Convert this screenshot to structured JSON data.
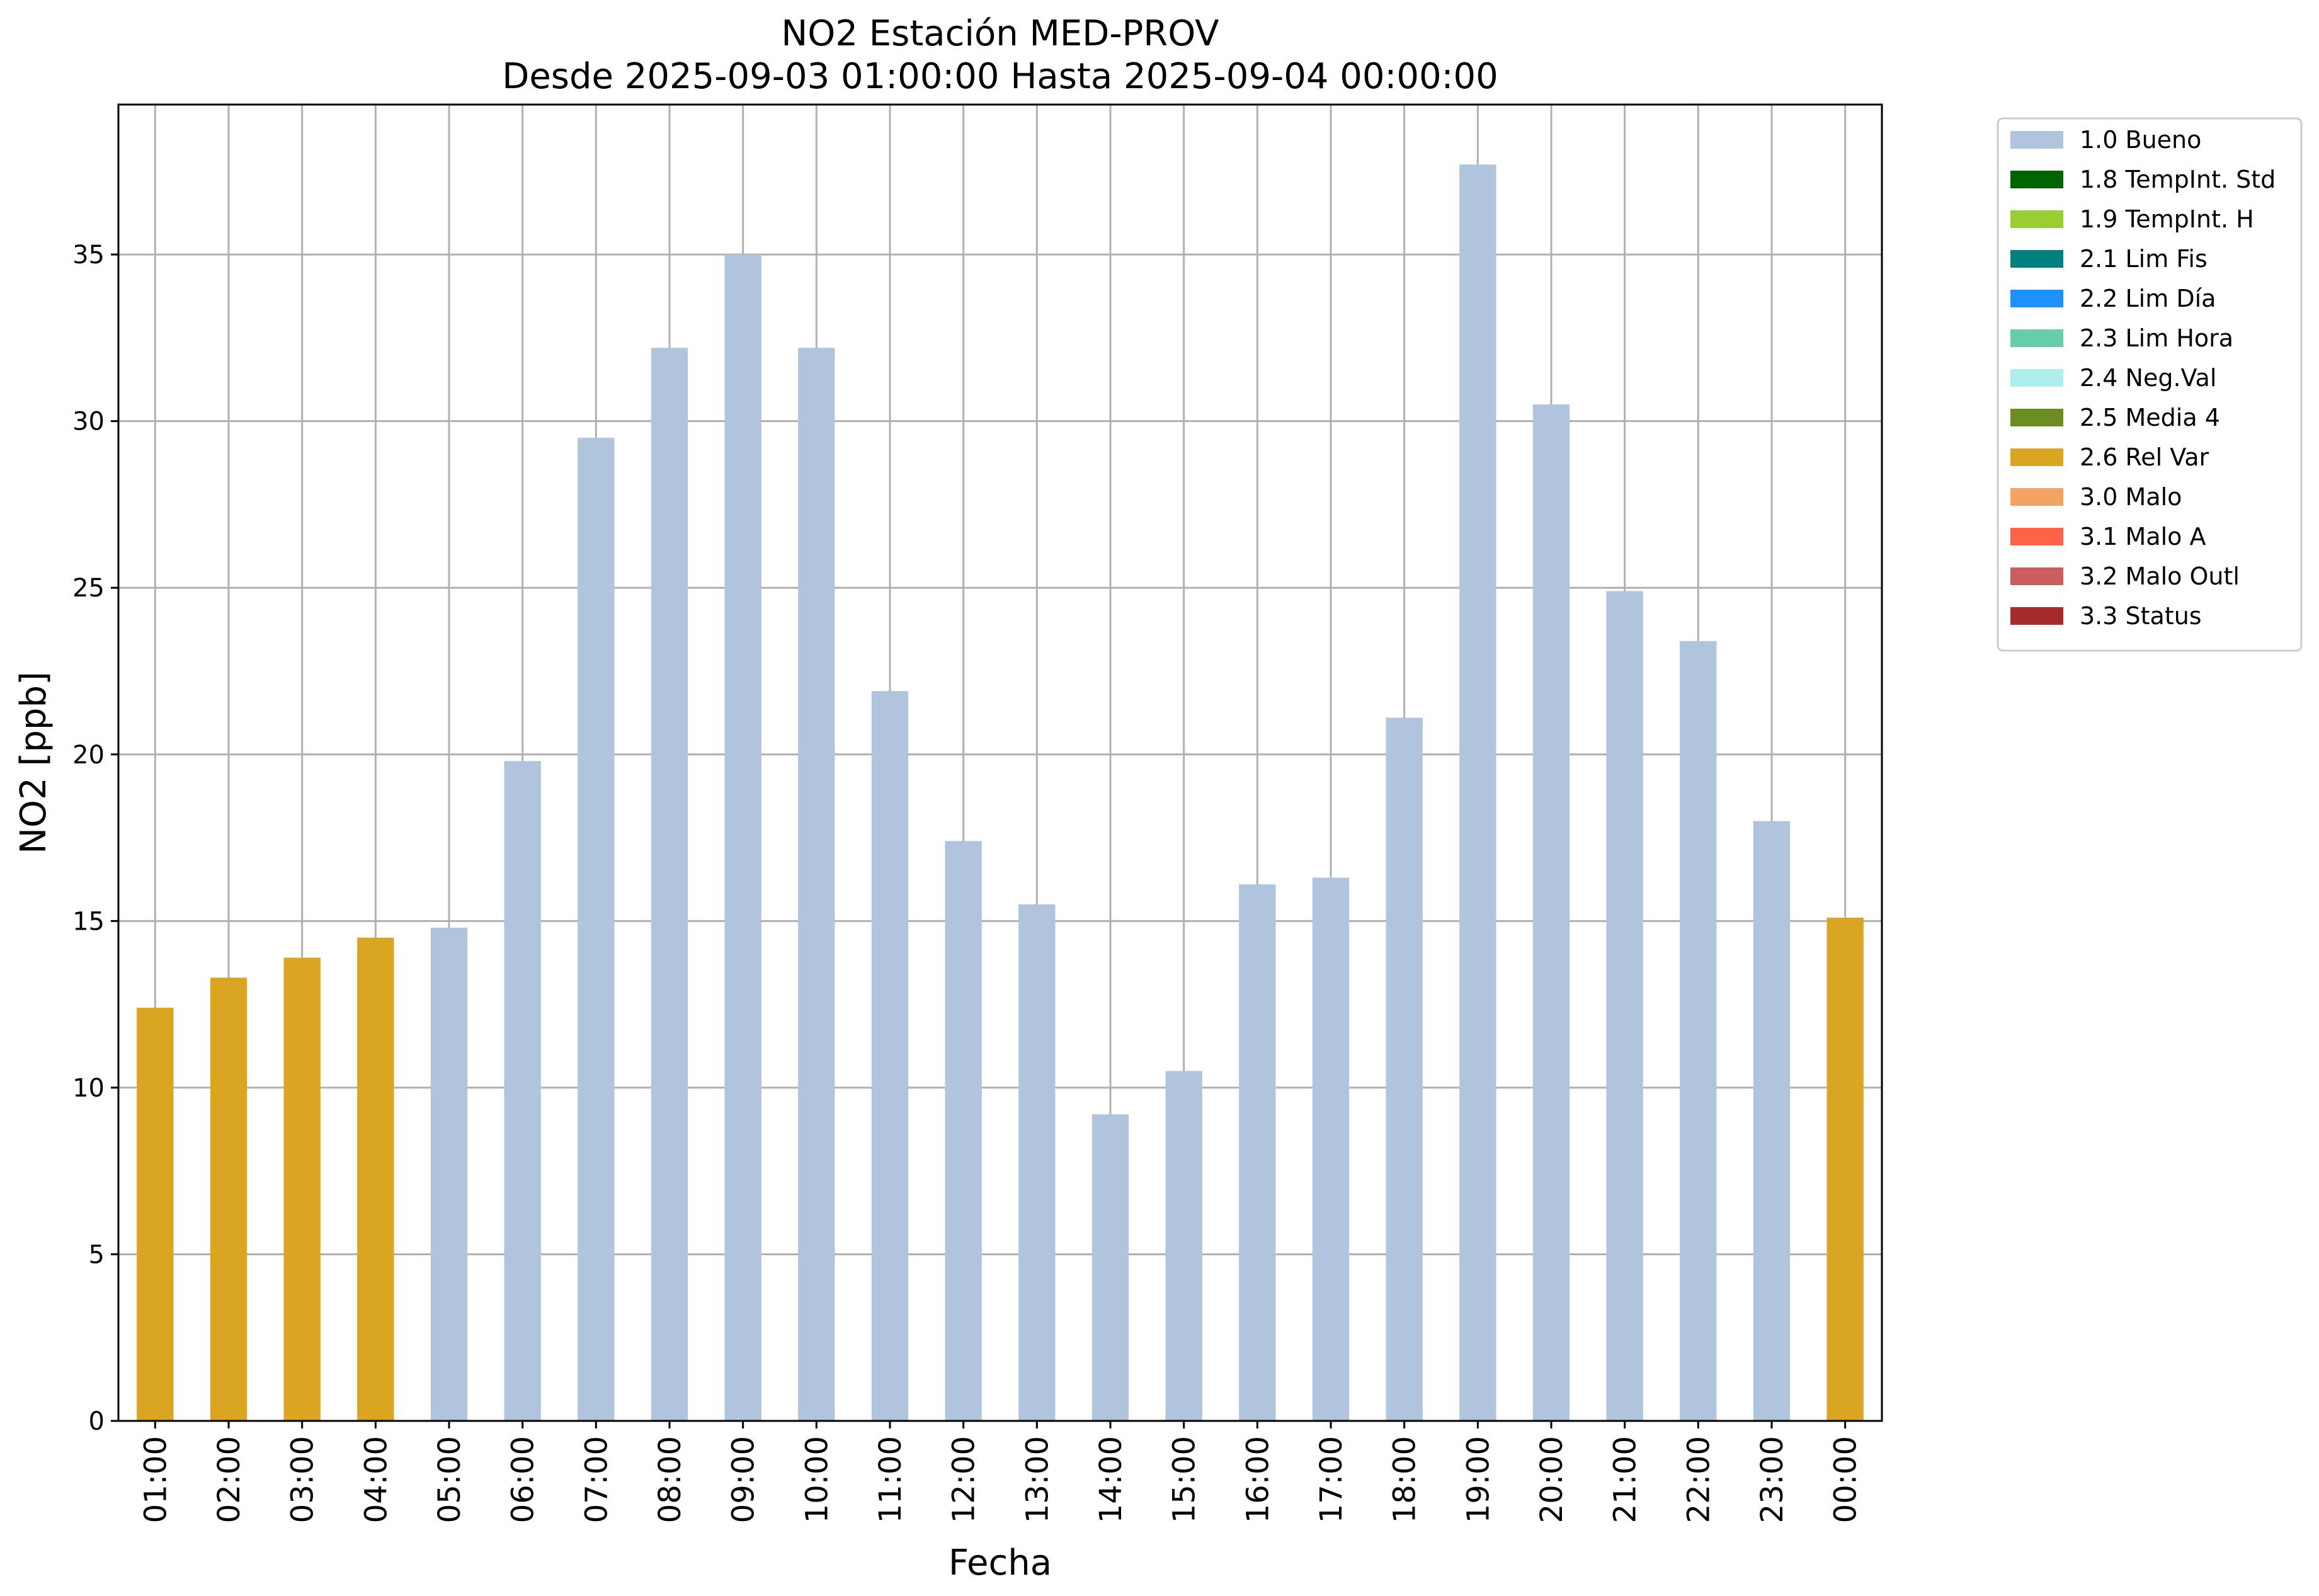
{
  "chart_data": {
    "type": "bar",
    "title": "NO2 Estación MED-PROV",
    "subtitle": "Desde 2025-09-03 01:00:00 Hasta 2025-09-04 00:00:00",
    "xlabel": "Fecha",
    "ylabel": "NO2 [ppb]",
    "ylim": [
      0,
      39.5
    ],
    "yticks": [
      0,
      5,
      10,
      15,
      20,
      25,
      30,
      35
    ],
    "grid": true,
    "legend_position": "outside-right",
    "categories": [
      "01:00",
      "02:00",
      "03:00",
      "04:00",
      "05:00",
      "06:00",
      "07:00",
      "08:00",
      "09:00",
      "10:00",
      "11:00",
      "12:00",
      "13:00",
      "14:00",
      "15:00",
      "16:00",
      "17:00",
      "18:00",
      "19:00",
      "20:00",
      "21:00",
      "22:00",
      "23:00",
      "00:00"
    ],
    "values": [
      12.4,
      13.3,
      13.9,
      14.5,
      14.8,
      19.8,
      29.5,
      32.2,
      35.0,
      32.2,
      21.9,
      17.4,
      15.5,
      9.2,
      10.5,
      16.1,
      16.3,
      21.1,
      37.7,
      30.5,
      24.9,
      23.4,
      18.0,
      15.1
    ],
    "bar_flags": [
      "2.6 Rel Var",
      "2.6 Rel Var",
      "2.6 Rel Var",
      "2.6 Rel Var",
      "1.0 Bueno",
      "1.0 Bueno",
      "1.0 Bueno",
      "1.0 Bueno",
      "1.0 Bueno",
      "1.0 Bueno",
      "1.0 Bueno",
      "1.0 Bueno",
      "1.0 Bueno",
      "1.0 Bueno",
      "1.0 Bueno",
      "1.0 Bueno",
      "1.0 Bueno",
      "1.0 Bueno",
      "1.0 Bueno",
      "1.0 Bueno",
      "1.0 Bueno",
      "1.0 Bueno",
      "1.0 Bueno",
      "2.6 Rel Var"
    ],
    "legend": [
      {
        "label": "1.0 Bueno",
        "color": "#b0c4de"
      },
      {
        "label": "1.8 TempInt. Std",
        "color": "#006400"
      },
      {
        "label": "1.9 TempInt. H",
        "color": "#9acd32"
      },
      {
        "label": "2.1 Lim Fis",
        "color": "#008080"
      },
      {
        "label": "2.2 Lim Día",
        "color": "#1e90ff"
      },
      {
        "label": "2.3 Lim Hora",
        "color": "#66cdaa"
      },
      {
        "label": "2.4 Neg.Val",
        "color": "#afeeee"
      },
      {
        "label": "2.5 Media 4",
        "color": "#6b8e23"
      },
      {
        "label": "2.6 Rel Var",
        "color": "#daa520"
      },
      {
        "label": "3.0 Malo",
        "color": "#f4a460"
      },
      {
        "label": "3.1 Malo A",
        "color": "#ff6347"
      },
      {
        "label": "3.2 Malo Outl",
        "color": "#cd5c5c"
      },
      {
        "label": "3.3 Status",
        "color": "#a52a2a"
      }
    ]
  }
}
